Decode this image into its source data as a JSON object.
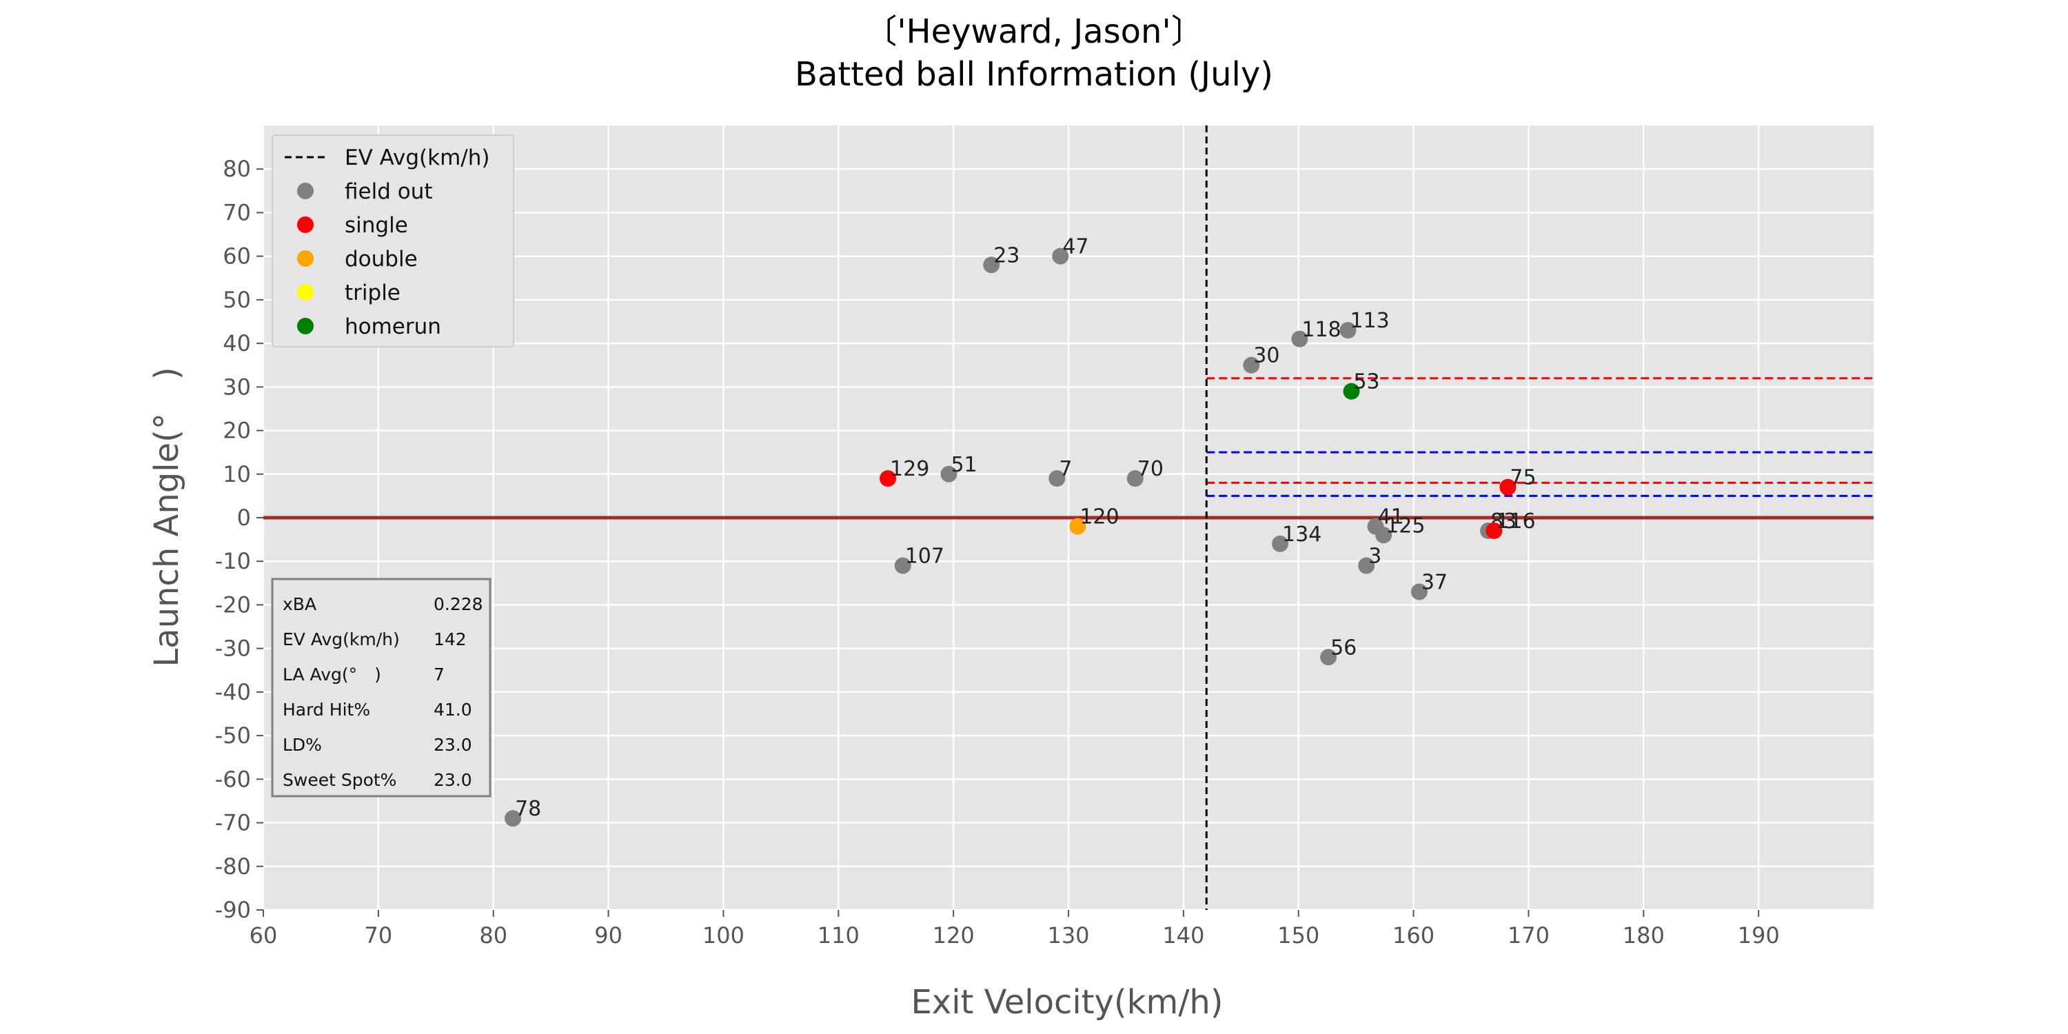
{
  "chart_data": {
    "type": "scatter",
    "title_line1": "〔'Heyward, Jason'〕",
    "title_line2": "Batted ball Information (July)",
    "xlabel": "Exit Velocity(km/h)",
    "ylabel": "Launch Angle(°　)",
    "xlim": [
      60,
      200
    ],
    "ylim": [
      -90,
      90
    ],
    "xticks": [
      60,
      70,
      80,
      90,
      100,
      110,
      120,
      130,
      140,
      150,
      160,
      170,
      180,
      190
    ],
    "yticks": [
      -90,
      -80,
      -70,
      -60,
      -50,
      -40,
      -30,
      -20,
      -10,
      0,
      10,
      20,
      30,
      40,
      50,
      60,
      70,
      80
    ],
    "grid": true,
    "colors": {
      "background": "#e5e5e5",
      "grid": "#ffffff",
      "field out": "#808080",
      "single": "#ff0000",
      "double": "#ffa500",
      "triple": "#ffff00",
      "homerun": "#008000",
      "zero_line": "#a52a2a",
      "ev_avg_line": "#000000",
      "red_dash": "#ff0000",
      "blue_dash": "#0000ff"
    },
    "ev_avg": 142,
    "zero_line_y": 0,
    "reference_lines": [
      {
        "y": 32,
        "x_start": 142,
        "color": "red_dash"
      },
      {
        "y": 15,
        "x_start": 142,
        "color": "blue_dash"
      },
      {
        "y": 8,
        "x_start": 142,
        "color": "red_dash"
      },
      {
        "y": 5,
        "x_start": 142,
        "color": "blue_dash"
      }
    ],
    "legend": {
      "position": "top-left",
      "entries": [
        {
          "label": "EV Avg(km/h)",
          "kind": "line",
          "color": "ev_avg_line"
        },
        {
          "label": "field out",
          "kind": "dot",
          "color": "field out"
        },
        {
          "label": "single",
          "kind": "dot",
          "color": "single"
        },
        {
          "label": "double",
          "kind": "dot",
          "color": "double"
        },
        {
          "label": "triple",
          "kind": "dot",
          "color": "triple"
        },
        {
          "label": "homerun",
          "kind": "dot",
          "color": "homerun"
        }
      ]
    },
    "points": [
      {
        "label": "23",
        "x": 123.3,
        "y": 58,
        "result": "field out"
      },
      {
        "label": "47",
        "x": 129.3,
        "y": 60,
        "result": "field out"
      },
      {
        "label": "118",
        "x": 150.1,
        "y": 41,
        "result": "field out"
      },
      {
        "label": "113",
        "x": 154.3,
        "y": 43,
        "result": "field out"
      },
      {
        "label": "30",
        "x": 145.9,
        "y": 35,
        "result": "field out"
      },
      {
        "label": "53",
        "x": 154.6,
        "y": 29,
        "result": "homerun"
      },
      {
        "label": "129",
        "x": 114.3,
        "y": 9,
        "result": "single"
      },
      {
        "label": "51",
        "x": 119.6,
        "y": 10,
        "result": "field out"
      },
      {
        "label": "7",
        "x": 129.0,
        "y": 9,
        "result": "field out"
      },
      {
        "label": "70",
        "x": 135.8,
        "y": 9,
        "result": "field out"
      },
      {
        "label": "75",
        "x": 168.2,
        "y": 7,
        "result": "single"
      },
      {
        "label": "120",
        "x": 130.8,
        "y": -2,
        "result": "double"
      },
      {
        "label": "41",
        "x": 156.7,
        "y": -2,
        "result": "field out"
      },
      {
        "label": "125",
        "x": 157.4,
        "y": -4,
        "result": "field out"
      },
      {
        "label": "83",
        "x": 166.5,
        "y": -3,
        "result": "field out"
      },
      {
        "label": "116",
        "x": 167.0,
        "y": -3,
        "result": "single"
      },
      {
        "label": "134",
        "x": 148.4,
        "y": -6,
        "result": "field out"
      },
      {
        "label": "107",
        "x": 115.6,
        "y": -11,
        "result": "field out"
      },
      {
        "label": "3",
        "x": 155.9,
        "y": -11,
        "result": "field out"
      },
      {
        "label": "37",
        "x": 160.5,
        "y": -17,
        "result": "field out"
      },
      {
        "label": "56",
        "x": 152.6,
        "y": -32,
        "result": "field out"
      },
      {
        "label": "78",
        "x": 81.7,
        "y": -69,
        "result": "field out"
      }
    ],
    "stats_table": [
      {
        "label": "xBA",
        "value": "0.228"
      },
      {
        "label": "EV Avg(km/h)",
        "value": "142"
      },
      {
        "label": "LA Avg(°　)",
        "value": "7"
      },
      {
        "label": "Hard Hit%",
        "value": "41.0"
      },
      {
        "label": "LD%",
        "value": "23.0"
      },
      {
        "label": "Sweet Spot%",
        "value": "23.0"
      }
    ]
  }
}
